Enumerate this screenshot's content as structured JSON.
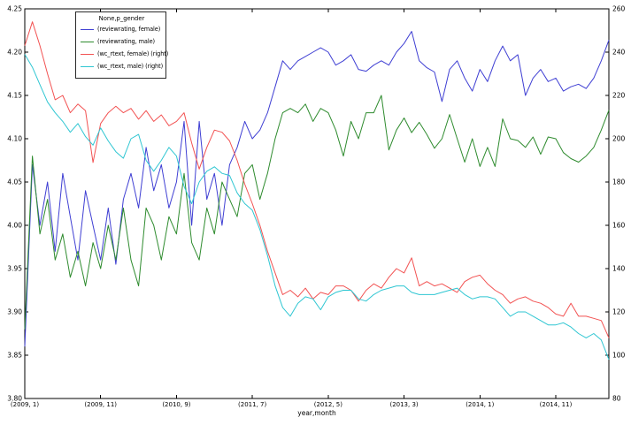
{
  "figure": {
    "background": "#ffffff",
    "plot_background": "#ffffff",
    "frame_color": "#000000"
  },
  "chart_data": {
    "type": "line",
    "title": "",
    "xlabel": "year,month",
    "ylabel_left": "",
    "ylabel_right": "",
    "grid": false,
    "legend_title": "None,p_gender",
    "legend_position": "upper left",
    "n_points": 78,
    "x_description": "monthly periods from (2009, 1) to (2015, 6)",
    "x_tick_positions": [
      0,
      10,
      20,
      30,
      40,
      50,
      60,
      70
    ],
    "x_tick_labels": [
      "(2009, 1)",
      "(2009, 11)",
      "(2010, 9)",
      "(2011, 7)",
      "(2012, 5)",
      "(2013, 3)",
      "(2014, 1)",
      "(2014, 11)"
    ],
    "left_axis": {
      "min": 3.8,
      "max": 4.25,
      "tick_labels": [
        "4.25",
        "4.20",
        "4.15",
        "4.10",
        "4.05",
        "4.00",
        "3.95",
        "3.90",
        "3.85",
        "3.80"
      ]
    },
    "right_axis": {
      "min": 80,
      "max": 260,
      "tick_labels": [
        "260",
        "240",
        "220",
        "200",
        "180",
        "160",
        "140",
        "120",
        "100",
        "80"
      ]
    },
    "series": [
      {
        "name": "(reviewrating, female)",
        "axis": "left",
        "color": "#3f3fd3",
        "values": [
          3.86,
          4.07,
          4.0,
          4.05,
          3.97,
          4.06,
          4.01,
          3.96,
          4.04,
          4.0,
          3.96,
          4.02,
          3.955,
          4.03,
          4.06,
          4.02,
          4.09,
          4.04,
          4.07,
          4.02,
          4.05,
          4.12,
          4.0,
          4.12,
          4.03,
          4.06,
          4.0,
          4.07,
          4.09,
          4.12,
          4.1,
          4.11,
          4.13,
          4.16,
          4.19,
          4.18,
          4.19,
          4.195,
          4.2,
          4.205,
          4.2,
          4.185,
          4.19,
          4.197,
          4.18,
          4.178,
          4.185,
          4.19,
          4.185,
          4.2,
          4.21,
          4.224,
          4.19,
          4.182,
          4.177,
          4.143,
          4.18,
          4.19,
          4.17,
          4.155,
          4.18,
          4.166,
          4.19,
          4.207,
          4.19,
          4.197,
          4.15,
          4.17,
          4.18,
          4.166,
          4.17,
          4.155,
          4.16,
          4.163,
          4.158,
          4.17,
          4.19,
          4.214
        ]
      },
      {
        "name": "(reviewrating, male)",
        "axis": "left",
        "color": "#2e8b2e",
        "values": [
          3.88,
          4.08,
          3.99,
          4.03,
          3.96,
          3.99,
          3.94,
          3.97,
          3.93,
          3.98,
          3.95,
          4.0,
          3.96,
          4.02,
          3.96,
          3.93,
          4.02,
          4.0,
          3.96,
          4.01,
          3.99,
          4.06,
          3.98,
          3.96,
          4.02,
          3.99,
          4.05,
          4.03,
          4.01,
          4.06,
          4.07,
          4.03,
          4.06,
          4.1,
          4.13,
          4.135,
          4.13,
          4.14,
          4.12,
          4.135,
          4.13,
          4.11,
          4.08,
          4.12,
          4.1,
          4.13,
          4.13,
          4.15,
          4.087,
          4.11,
          4.124,
          4.107,
          4.119,
          4.105,
          4.089,
          4.1,
          4.128,
          4.1,
          4.073,
          4.1,
          4.068,
          4.09,
          4.068,
          4.123,
          4.1,
          4.098,
          4.09,
          4.102,
          4.082,
          4.102,
          4.1,
          4.084,
          4.077,
          4.073,
          4.08,
          4.09,
          4.11,
          4.133
        ]
      },
      {
        "name": "(wc_rtext, female) (right)",
        "axis": "right",
        "color": "#f25252",
        "values": [
          243,
          254,
          243,
          230,
          218,
          220,
          212,
          216,
          213,
          189,
          207,
          212,
          215,
          212,
          214,
          209,
          213,
          208,
          211,
          206,
          208,
          212,
          198,
          186,
          196,
          204,
          203,
          199,
          190,
          179,
          170,
          160,
          148,
          138,
          128,
          130,
          127,
          131,
          126,
          129,
          128,
          132,
          132,
          130,
          125,
          130,
          133,
          131,
          136,
          140,
          138,
          145,
          132,
          134,
          132,
          133,
          131,
          129,
          134,
          136,
          137,
          133,
          130,
          128,
          124,
          126,
          127,
          125,
          124,
          122,
          119,
          118,
          124,
          118,
          118,
          117,
          116,
          108
        ]
      },
      {
        "name": "(wc_rtext, male) (right)",
        "axis": "right",
        "color": "#2fc6d2",
        "values": [
          239,
          233,
          225,
          217,
          212,
          208,
          203,
          207,
          201,
          197,
          205,
          199,
          194,
          191,
          200,
          202,
          190,
          185,
          190,
          196,
          192,
          178,
          170,
          180,
          185,
          187,
          184,
          183,
          175,
          170,
          167,
          158,
          146,
          132,
          122,
          118,
          124,
          127,
          126,
          121,
          127,
          129,
          130,
          130,
          126,
          125,
          128,
          130,
          131,
          132,
          132,
          129,
          128,
          128,
          128,
          129,
          130,
          131,
          128,
          126,
          127,
          127,
          126,
          122,
          118,
          120,
          120,
          118,
          116,
          114,
          114,
          115,
          113,
          110,
          108,
          110,
          107,
          98
        ]
      }
    ]
  }
}
